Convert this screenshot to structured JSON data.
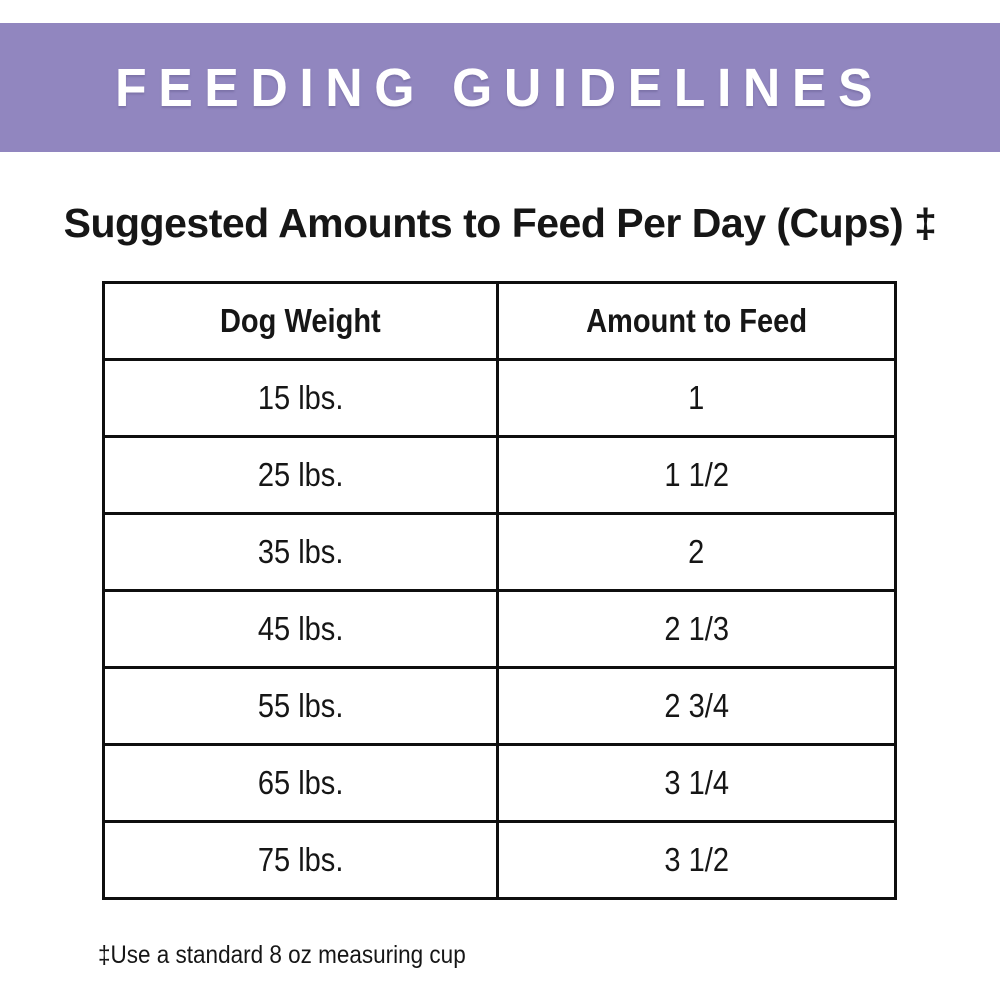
{
  "banner": {
    "title": "FEEDING GUIDELINES",
    "bg_color": "#9186BF",
    "text_color": "#FFFFFF"
  },
  "heading": {
    "text": "Suggested Amounts to Feed Per Day (Cups) ‡"
  },
  "table": {
    "columns": [
      "Dog Weight",
      "Amount to Feed"
    ],
    "rows": [
      {
        "weight": "15 lbs.",
        "amount": "1"
      },
      {
        "weight": "25 lbs.",
        "amount": "1 1/2"
      },
      {
        "weight": "35 lbs.",
        "amount": "2"
      },
      {
        "weight": "45 lbs.",
        "amount": "2 1/3"
      },
      {
        "weight": "55 lbs.",
        "amount": "2 3/4"
      },
      {
        "weight": "65 lbs.",
        "amount": "3 1/4"
      },
      {
        "weight": "75 lbs.",
        "amount": "3 1/2"
      }
    ],
    "border_color": "#0F0F0F"
  },
  "footnote": {
    "text": "‡Use a standard 8 oz measuring cup"
  }
}
